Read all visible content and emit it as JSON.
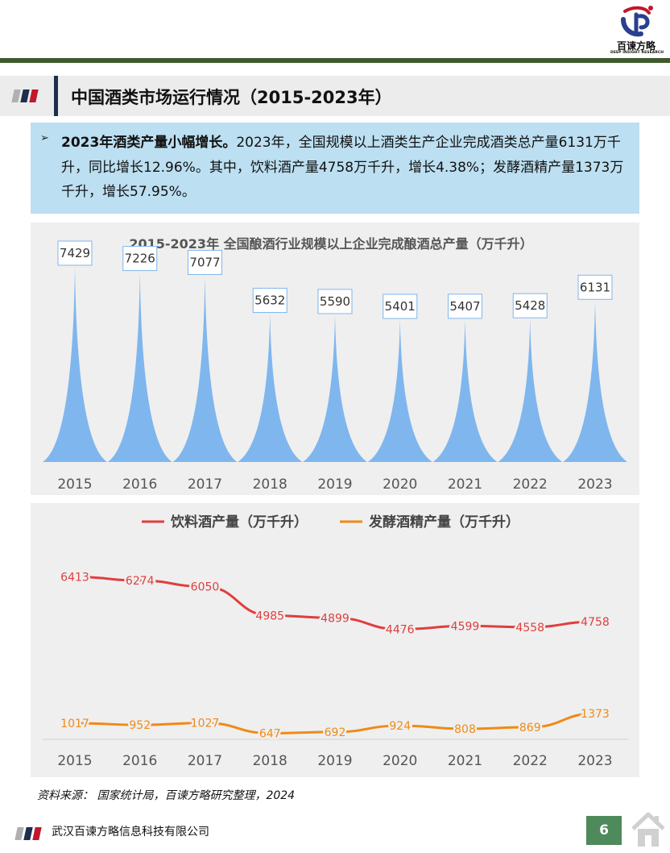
{
  "brand": {
    "name": "百谏方略",
    "tagline": "DEEP INSIGHT RESEARCH"
  },
  "page_title": "中国酒类市场运行情况（2015-2023年）",
  "highlight": {
    "bold": "2023年酒类产量小幅增长。",
    "text": "2023年，全国规模以上酒类生产企业完成酒类总产量6131万千升，同比增长12.96%。其中，饮料酒产量4758万千升，增长4.38%；发酵酒精产量1373万千升，增长57.95%。"
  },
  "chart_data": [
    {
      "type": "bar",
      "title": "2015-2023年 全国酿酒行业规模以上企业完成酿酒总产量（万千升）",
      "categories": [
        "2015",
        "2016",
        "2017",
        "2018",
        "2019",
        "2020",
        "2021",
        "2022",
        "2023"
      ],
      "values": [
        7429,
        7226,
        7077,
        5632,
        5590,
        5401,
        5407,
        5428,
        6131
      ],
      "ylim": [
        0,
        7429
      ],
      "grid": false,
      "color": "#7fb6ee"
    },
    {
      "type": "line",
      "categories": [
        "2015",
        "2016",
        "2017",
        "2018",
        "2019",
        "2020",
        "2021",
        "2022",
        "2023"
      ],
      "series": [
        {
          "name": "饮料酒产量（万千升）",
          "values": [
            6413,
            6274,
            6050,
            4985,
            4899,
            4476,
            4599,
            4558,
            4758
          ],
          "color": "#e03e3e"
        },
        {
          "name": "发酵酒精产量（万千升）",
          "values": [
            1017,
            952,
            1027,
            647,
            692,
            924,
            808,
            869,
            1373
          ],
          "color": "#ef8a17"
        }
      ],
      "legend": "top",
      "grid": false
    }
  ],
  "source": "资料来源： 国家统计局，百谏方略研究整理，2024",
  "footer": {
    "company": "武汉百谏方略信息科技有限公司",
    "page_number": "6"
  }
}
